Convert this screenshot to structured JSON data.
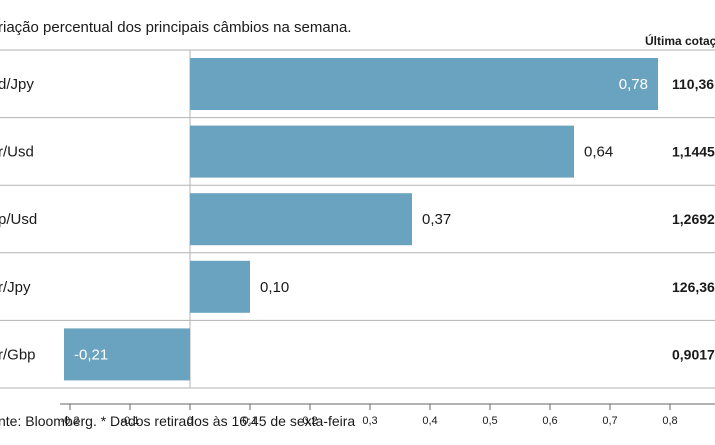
{
  "chart_data": {
    "type": "bar",
    "orientation": "horizontal",
    "title": "Variação percentual dos principais câmbios na semana.",
    "title_visible": "riação percentual dos principais câmbios na semana.",
    "right_column_header": "Última cotação",
    "right_column_header_visible": "Última cotaç",
    "categories": [
      "Usd/Jpy",
      "Eur/Usd",
      "Gbp/Usd",
      "Eur/Jpy",
      "Eur/Gbp"
    ],
    "categories_visible": [
      "d/Jpy",
      "r/Usd",
      "p/Usd",
      "r/Jpy",
      "r/Gbp"
    ],
    "values": [
      0.78,
      0.64,
      0.37,
      0.1,
      -0.21
    ],
    "value_labels": [
      "0,78",
      "0,64",
      "0,37",
      "0,10",
      "-0,21"
    ],
    "last_quotes": [
      "110,36",
      "1,1445",
      "1,2692",
      "126,36",
      "0,9017"
    ],
    "last_quotes_visible": [
      "110,36",
      "1,1445",
      "1,2692",
      "126,36",
      "0,9017"
    ],
    "xlim": [
      -0.2,
      0.8
    ],
    "ticks": [
      -0.2,
      -0.1,
      0,
      0.1,
      0.2,
      0.3,
      0.4,
      0.5,
      0.6,
      0.7,
      0.8
    ],
    "tick_labels": [
      "-0,2",
      "-0,1",
      "0",
      "0,1",
      "0,2",
      "0,3",
      "0,4",
      "0,5",
      "0,6",
      "0,7",
      "0,8"
    ],
    "source": "nte: Bloomberg.  * Dados retirados às 16:45 de sexta-feira",
    "bar_color": "#6aa3bf",
    "grid_color": "#b3b3b3"
  }
}
